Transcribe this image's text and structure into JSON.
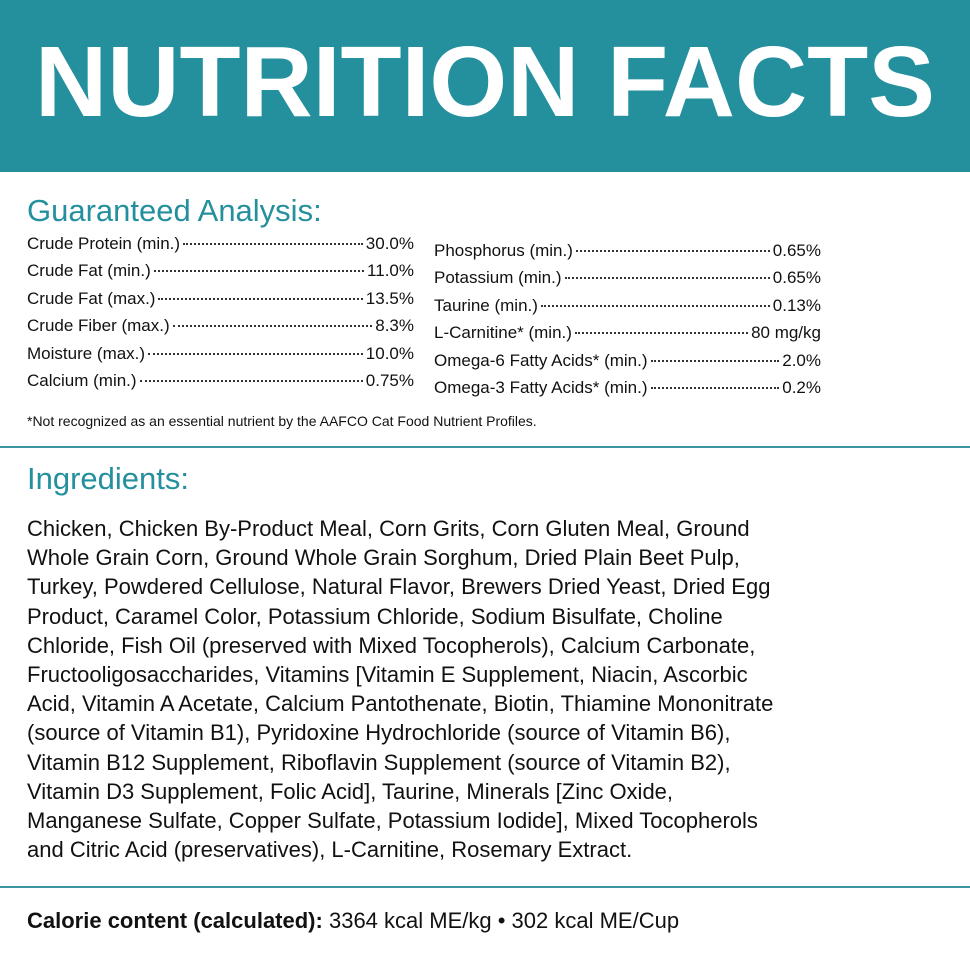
{
  "header": {
    "title": "NUTRITION FACTS"
  },
  "analysis": {
    "title": "Guaranteed Analysis:",
    "left": [
      {
        "label": "Crude Protein (min.)",
        "value": "30.0%"
      },
      {
        "label": "Crude Fat (min.)",
        "value": "11.0%"
      },
      {
        "label": "Crude Fat (max.)",
        "value": "13.5%"
      },
      {
        "label": "Crude Fiber (max.)",
        "value": "8.3%"
      },
      {
        "label": "Moisture (max.)",
        "value": "10.0%"
      },
      {
        "label": "Calcium (min.)",
        "value": "0.75%"
      }
    ],
    "right": [
      {
        "label": "Phosphorus (min.)",
        "value": "0.65%"
      },
      {
        "label": "Potassium (min.)",
        "value": "0.65%"
      },
      {
        "label": "Taurine (min.)",
        "value": "0.13%"
      },
      {
        "label": "L-Carnitine* (min.)",
        "value": "80 mg/kg"
      },
      {
        "label": "Omega-6 Fatty Acids* (min.)",
        "value": "2.0%"
      },
      {
        "label": "Omega-3 Fatty Acids* (min.)",
        "value": "0.2%"
      }
    ],
    "footnote": "*Not recognized as an essential nutrient by the AAFCO Cat Food Nutrient Profiles."
  },
  "ingredients": {
    "title": "Ingredients:",
    "lines": [
      "Chicken, Chicken By-Product Meal, Corn Grits, Corn Gluten Meal, Ground",
      "Whole Grain Corn, Ground Whole Grain Sorghum, Dried Plain Beet Pulp,",
      "Turkey, Powdered Cellulose, Natural Flavor, Brewers Dried Yeast, Dried Egg",
      "Product, Caramel Color, Potassium Chloride, Sodium Bisulfate, Choline",
      "Chloride, Fish Oil (preserved with Mixed Tocopherols), Calcium Carbonate,",
      "Fructooligosaccharides, Vitamins [Vitamin E Supplement, Niacin, Ascorbic",
      "Acid, Vitamin A Acetate, Calcium Pantothenate, Biotin, Thiamine Mononitrate",
      "(source of Vitamin B1), Pyridoxine Hydrochloride (source of Vitamin B6),",
      "Vitamin B12 Supplement, Riboflavin Supplement (source of Vitamin B2),",
      "Vitamin D3 Supplement, Folic Acid], Taurine, Minerals [Zinc Oxide,",
      "Manganese Sulfate, Copper Sulfate, Potassium Iodide], Mixed Tocopherols",
      "and Citric Acid (preservatives), L-Carnitine, Rosemary Extract."
    ]
  },
  "calorie": {
    "label": "Calorie content (calculated):",
    "value": "3364 kcal ME/kg • 302 kcal ME/Cup"
  }
}
